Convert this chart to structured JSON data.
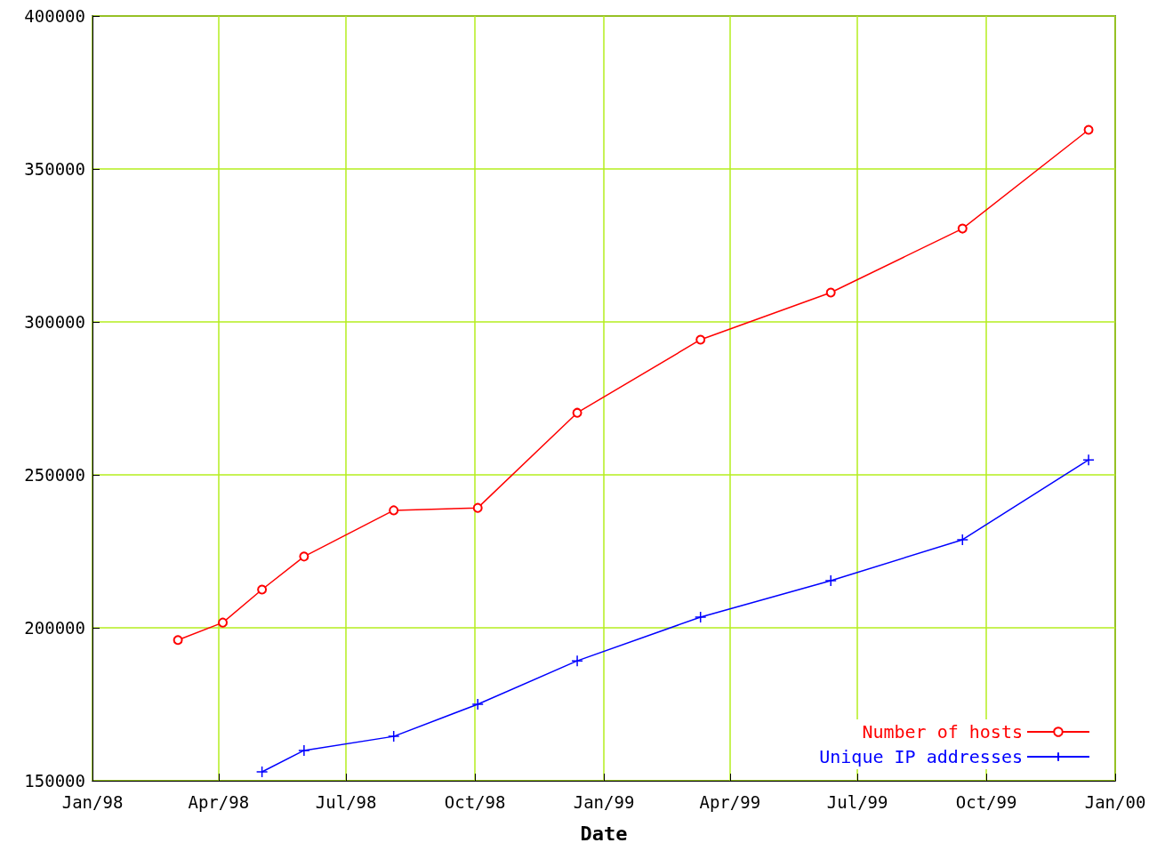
{
  "chart_data": {
    "type": "line",
    "xlabel": "Date",
    "xlim": [
      "1998-01-01",
      "2000-01-01"
    ],
    "xticks": [
      {
        "value": "1998-01-01",
        "label": "Jan/98"
      },
      {
        "value": "1998-04-01",
        "label": "Apr/98"
      },
      {
        "value": "1998-07-01",
        "label": "Jul/98"
      },
      {
        "value": "1998-10-01",
        "label": "Oct/98"
      },
      {
        "value": "1999-01-01",
        "label": "Jan/99"
      },
      {
        "value": "1999-04-01",
        "label": "Apr/99"
      },
      {
        "value": "1999-07-01",
        "label": "Jul/99"
      },
      {
        "value": "1999-10-01",
        "label": "Oct/99"
      },
      {
        "value": "2000-01-01",
        "label": "Jan/00"
      }
    ],
    "ylim": [
      150000,
      400000
    ],
    "yticks": [
      150000,
      200000,
      250000,
      300000,
      350000,
      400000
    ],
    "grid": true,
    "legend": "bottom right",
    "series": [
      {
        "name": "Number of hosts",
        "color": "#ff0000",
        "marker": "circle",
        "x": [
          "1998-03-03",
          "1998-04-04",
          "1998-05-02",
          "1998-06-01",
          "1998-08-04",
          "1998-10-03",
          "1998-12-13",
          "1999-03-11",
          "1999-06-12",
          "1999-09-14",
          "1999-12-13"
        ],
        "values": [
          196000,
          201700,
          212500,
          223300,
          238400,
          239200,
          270300,
          294200,
          309600,
          330500,
          362800
        ]
      },
      {
        "name": "Unique IP addresses",
        "color": "#0000ff",
        "marker": "cross",
        "x": [
          "1998-05-02",
          "1998-06-01",
          "1998-08-04",
          "1998-10-03",
          "1998-12-13",
          "1999-03-11",
          "1999-06-12",
          "1999-09-14",
          "1999-12-13"
        ],
        "values": [
          152900,
          159900,
          164500,
          175000,
          189200,
          203500,
          215400,
          228800,
          254900
        ]
      }
    ]
  }
}
